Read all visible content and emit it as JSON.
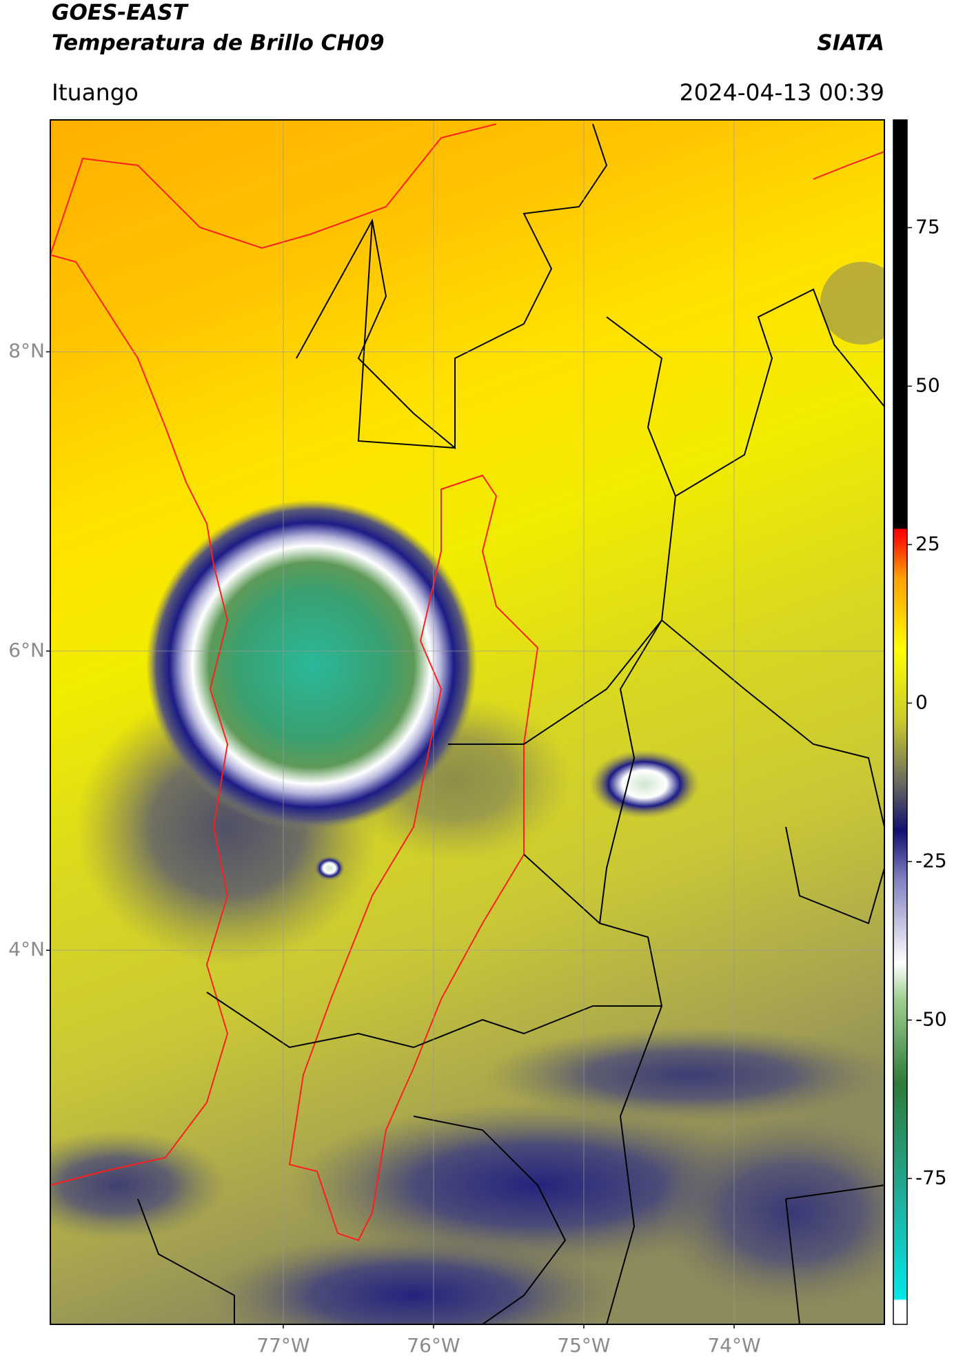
{
  "chart_data": {
    "type": "map",
    "title": "GOES-EAST",
    "subtitle": "Temperatura de Brillo CH09",
    "source": "SIATA",
    "location": "Ituango",
    "timestamp": "2024-04-13 00:39",
    "xlim": [
      -78.55,
      -73.0
    ],
    "ylim": [
      1.5,
      9.55
    ],
    "xticks": [
      {
        "value": -77,
        "label": "77°W"
      },
      {
        "value": -76,
        "label": "76°W"
      },
      {
        "value": -75,
        "label": "75°W"
      },
      {
        "value": -74,
        "label": "74°W"
      }
    ],
    "yticks": [
      {
        "value": 8,
        "label": "8°N"
      },
      {
        "value": 6,
        "label": "6°N"
      },
      {
        "value": 4,
        "label": "4°N"
      }
    ],
    "grid": true,
    "colorbar": {
      "lim": [
        -98,
        92
      ],
      "ticks": [
        75,
        50,
        25,
        0,
        -25,
        -50,
        -75
      ]
    }
  }
}
